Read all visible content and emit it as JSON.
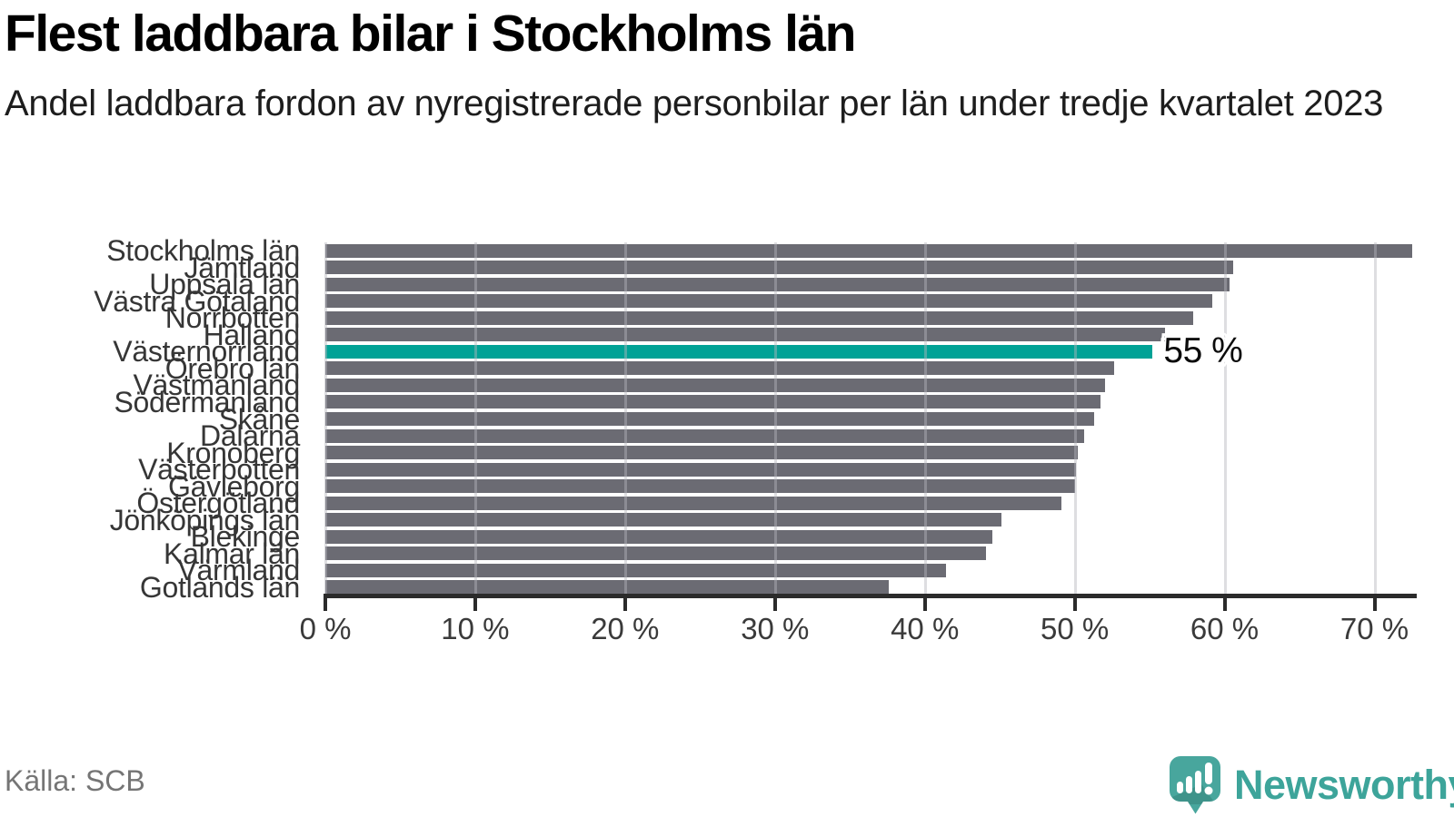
{
  "header": {
    "title": "Flest laddbara bilar i Stockholms län",
    "subtitle": "Andel laddbara fordon av nyregistrerade personbilar per län under tredje kvartalet 2023"
  },
  "chart_data": {
    "type": "bar",
    "orientation": "horizontal",
    "title": "Flest laddbara bilar i Stockholms län",
    "subtitle": "Andel laddbara fordon av nyregistrerade personbilar per län under tredje kvartalet 2023",
    "xlabel": "",
    "ylabel": "",
    "unit": "%",
    "xlim": [
      0,
      72.7
    ],
    "x_ticks": [
      0,
      10,
      20,
      30,
      40,
      50,
      60,
      70
    ],
    "x_tick_labels": [
      "0 %",
      "10 %",
      "20 %",
      "30 %",
      "40 %",
      "50 %",
      "60 %",
      "70 %"
    ],
    "grid": "vertical",
    "legend": "none",
    "categories": [
      "Stockholms län",
      "Jämtland",
      "Uppsala län",
      "Västra Götaland",
      "Norrbotten",
      "Halland",
      "Västernorrland",
      "Örebro län",
      "Västmanland",
      "Södermanland",
      "Skåne",
      "Dalarna",
      "Kronoberg",
      "Västerbotten",
      "Gävleborg",
      "Östergötland",
      "Jönköpings län",
      "Blekinge",
      "Kalmar län",
      "Värmland",
      "Gotlands län"
    ],
    "values": [
      72.5,
      60.6,
      60.3,
      59.2,
      57.9,
      56.0,
      55.2,
      52.6,
      52.0,
      51.7,
      51.3,
      50.6,
      50.2,
      50.1,
      50.0,
      49.1,
      45.1,
      44.5,
      44.1,
      41.4,
      37.6
    ],
    "highlight": {
      "category": "Västernorrland",
      "index": 6,
      "value_label": "55 %"
    },
    "colors": {
      "bar": "#6b6b73",
      "highlight": "#00a296",
      "gridline": "#d8d8d8",
      "axis": "#2b2b2b"
    }
  },
  "footer": {
    "source": "Källa: SCB",
    "brand_name": "Newsworthy",
    "brand_color": "#3da49a"
  }
}
